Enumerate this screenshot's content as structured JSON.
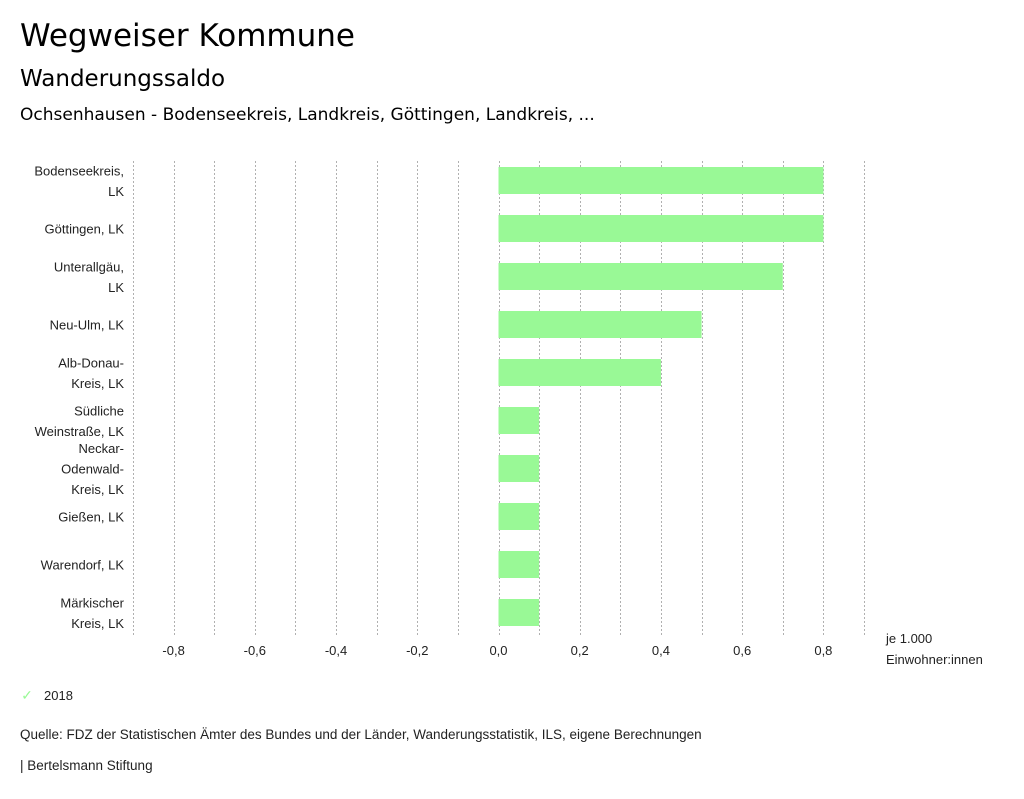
{
  "header": {
    "title": "Wegweiser Kommune",
    "subtitle": "Wanderungssaldo",
    "selection": "Ochsenhausen - Bodenseekreis, Landkreis, Göttingen, Landkreis, ..."
  },
  "chart_data": {
    "type": "bar",
    "orientation": "horizontal",
    "title": "Wanderungssaldo",
    "xlabel": "je 1.000 Einwohner:innen",
    "xlabel_lines": [
      "je 1.000",
      "Einwohner:innen"
    ],
    "ylabel": "",
    "xlim": [
      -0.9,
      0.9
    ],
    "x_ticks": [
      -0.8,
      -0.6,
      -0.4,
      -0.2,
      0.0,
      0.2,
      0.4,
      0.6,
      0.8
    ],
    "x_tick_labels": [
      "-0,8",
      "-0,6",
      "-0,4",
      "-0,2",
      "0,0",
      "0,2",
      "0,4",
      "0,6",
      "0,8"
    ],
    "grid": "vertical dotted every 0.1",
    "categories": [
      "Bodenseekreis, LK",
      "Göttingen, LK",
      "Unterallgäu, LK",
      "Neu-Ulm, LK",
      "Alb-Donau-Kreis, LK",
      "Südliche Weinstraße, LK",
      "Neckar-Odenwald-Kreis, LK",
      "Gießen, LK",
      "Warendorf, LK",
      "Märkischer Kreis, LK"
    ],
    "category_label_lines": [
      [
        "Bodenseekreis,",
        "LK"
      ],
      [
        "Göttingen, LK"
      ],
      [
        "Unterallgäu,",
        "LK"
      ],
      [
        "Neu-Ulm, LK"
      ],
      [
        "Alb-Donau-",
        "Kreis, LK"
      ],
      [
        "Südliche",
        "Weinstraße, LK"
      ],
      [
        "Neckar-",
        "Odenwald-",
        "Kreis, LK"
      ],
      [
        "Gießen, LK"
      ],
      [
        "Warendorf, LK"
      ],
      [
        "Märkischer",
        "Kreis, LK"
      ]
    ],
    "series": [
      {
        "name": "2018",
        "color": "#99f996",
        "values": [
          0.8,
          0.8,
          0.7,
          0.5,
          0.4,
          0.1,
          0.1,
          0.1,
          0.1,
          0.1
        ]
      }
    ],
    "legend": {
      "position": "bottom-left",
      "entries": [
        "2018"
      ]
    }
  },
  "legend": {
    "label": "2018",
    "icon": "check-icon",
    "color": "#99f996"
  },
  "footer": {
    "source": "Quelle: FDZ der Statistischen Ämter des Bundes und der Länder, Wanderungsstatistik, ILS, eigene Berechnungen",
    "brand": "| Bertelsmann Stiftung"
  }
}
